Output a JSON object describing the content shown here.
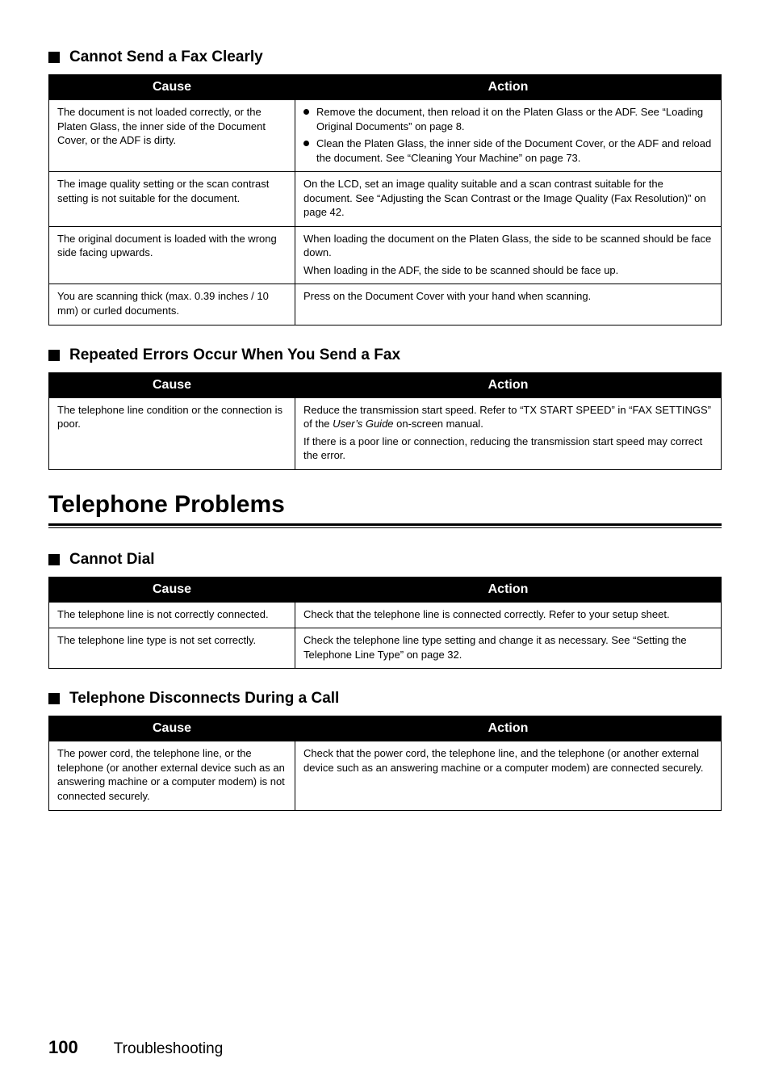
{
  "sections": [
    {
      "heading": "Cannot Send a Fax Clearly",
      "rows": [
        {
          "cause": "The document is not loaded correctly, or the Platen Glass, the inner side of the Document Cover, or the ADF is dirty.",
          "action_list": [
            "Remove the document, then reload it on the Platen Glass or the ADF. See “Loading Original Documents” on page 8.",
            "Clean the Platen Glass, the inner side of the Document Cover, or the ADF and reload the document. See “Cleaning Your Machine” on page 73."
          ]
        },
        {
          "cause": "The image quality setting or the scan contrast setting is not suitable for the document.",
          "action": "On the LCD, set an image quality suitable and a scan contrast suitable for the document. See “Adjusting the Scan Contrast or the Image Quality (Fax Resolution)” on page 42."
        },
        {
          "cause": "The original document is loaded with the wrong side facing upwards.",
          "action_paras": [
            "When loading the document on the Platen Glass, the side to be scanned should be face down.",
            "When loading in the ADF, the side to be scanned should be face up."
          ]
        },
        {
          "cause": "You are scanning thick (max. 0.39 inches / 10 mm) or curled documents.",
          "action": "Press on the Document Cover with your hand when scanning."
        }
      ]
    },
    {
      "heading": "Repeated Errors Occur When You Send a Fax",
      "rows": [
        {
          "cause": "The telephone line condition or the connection is poor.",
          "action_paras_html": [
            "Reduce the transmission start speed. Refer to “TX START SPEED” in “FAX SETTINGS” of the <span class=\"italic\">User’s Guide</span> on-screen manual.",
            "If there is a poor line or connection, reducing the transmission start speed may correct the error."
          ]
        }
      ]
    }
  ],
  "main_heading": "Telephone Problems",
  "sections2": [
    {
      "heading": "Cannot Dial",
      "rows": [
        {
          "cause": "The telephone line is not correctly connected.",
          "action": "Check that the telephone line is connected correctly. Refer to your setup sheet."
        },
        {
          "cause": "The telephone line type is not set correctly.",
          "action": "Check the telephone line type setting and change it as necessary. See “Setting the Telephone Line Type” on page 32."
        }
      ]
    },
    {
      "heading": "Telephone Disconnects During a Call",
      "rows": [
        {
          "cause": "The power cord, the telephone line, or the telephone (or another external device such as an answering machine or a computer modem) is not connected securely.",
          "action": "Check that the power cord, the telephone line, and the telephone (or another external device such as an answering machine or a computer modem) are connected securely."
        }
      ]
    }
  ],
  "table_headers": {
    "cause": "Cause",
    "action": "Action"
  },
  "footer": {
    "page": "100",
    "title": "Troubleshooting"
  }
}
